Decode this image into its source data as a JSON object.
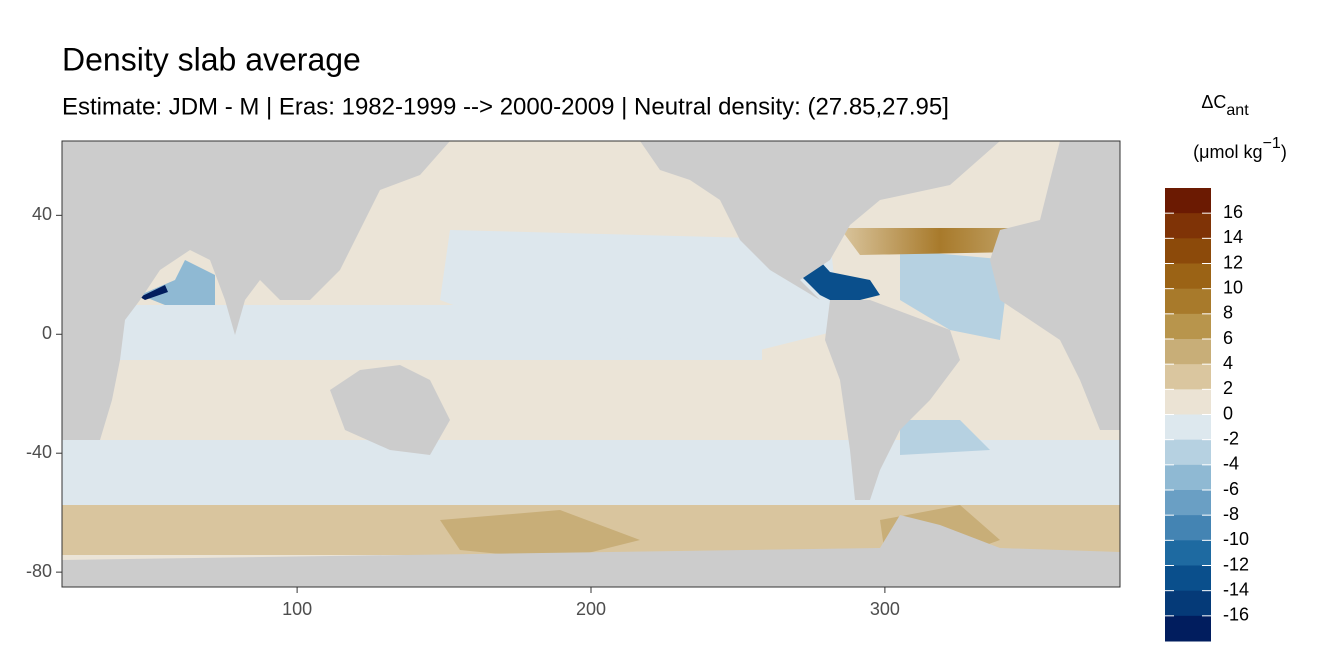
{
  "chart_data": {
    "type": "raster-map",
    "title": "Density slab average",
    "subtitle": "Estimate: JDM - M | Eras: 1982-1999 --> 2000-2009 | Neutral density: (27.85,27.95]",
    "xlim": [
      20,
      380
    ],
    "ylim": [
      -85,
      65
    ],
    "xticks": [
      100,
      200,
      300
    ],
    "yticks": [
      40,
      0,
      -40,
      -80
    ],
    "legend": {
      "title": {
        "main": "ΔC",
        "sub": "ant"
      },
      "units": {
        "main": "(μmol kg",
        "sup": "−1",
        "close": ")"
      },
      "breaks": [
        18,
        16,
        14,
        12,
        10,
        8,
        6,
        4,
        2,
        0,
        -2,
        -4,
        -6,
        -8,
        -10,
        -12,
        -14,
        -16,
        -18
      ],
      "colors": [
        "#6b1a02",
        "#7f3306",
        "#8c4a0a",
        "#9b6315",
        "#a87a2b",
        "#b8954c",
        "#c8ae78",
        "#dac69f",
        "#ebe3d4",
        "#dde8ee",
        "#b6d1e1",
        "#8fb9d3",
        "#6a9fc4",
        "#4484b3",
        "#1e6aa1",
        "#0a4f8c",
        "#053a78",
        "#011d5e"
      ],
      "ticks": [
        16,
        14,
        12,
        10,
        8,
        6,
        4,
        2,
        0,
        -2,
        -4,
        -6,
        -8,
        -10,
        -12,
        -14,
        -16
      ]
    }
  }
}
